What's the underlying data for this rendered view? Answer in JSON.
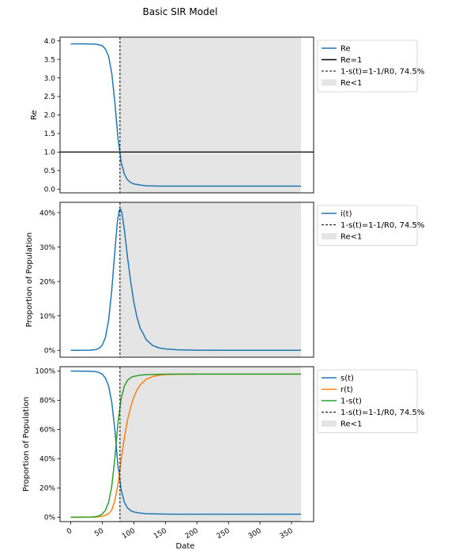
{
  "title": "Basic SIR Model",
  "colors": {
    "blue": "#1f77b4",
    "orange": "#ff7f0e",
    "green": "#2ca02c",
    "shade": "#e5e5e5"
  },
  "chart_data": [
    {
      "type": "line",
      "ylabel": "Re",
      "ylim": [
        -0.1,
        4.1
      ],
      "xlim": [
        -17,
        385
      ],
      "yticks": [
        0.0,
        0.5,
        1.0,
        1.5,
        2.0,
        2.5,
        3.0,
        3.5,
        4.0
      ],
      "ytick_labels": [
        "0.0",
        "0.5",
        "1.0",
        "1.5",
        "2.0",
        "2.5",
        "3.0",
        "3.5",
        "4.0"
      ],
      "legend": [
        "Re",
        "Re=1",
        "1-s(t)=1-1/R0, 74.5%",
        "Re<1"
      ],
      "legend_placement": "outside-right",
      "vline_x": 78,
      "shade_x": [
        78,
        365
      ],
      "hline_y": 1.0,
      "series": [
        {
          "name": "Re",
          "color": "#1f77b4",
          "x": [
            0,
            20,
            40,
            50,
            55,
            60,
            65,
            70,
            75,
            78,
            80,
            85,
            90,
            95,
            100,
            110,
            120,
            140,
            160,
            200,
            250,
            300,
            365
          ],
          "values": [
            3.92,
            3.92,
            3.91,
            3.87,
            3.78,
            3.58,
            3.12,
            2.32,
            1.35,
            0.98,
            0.72,
            0.4,
            0.25,
            0.18,
            0.14,
            0.11,
            0.09,
            0.08,
            0.08,
            0.08,
            0.08,
            0.08,
            0.08
          ]
        }
      ]
    },
    {
      "type": "line",
      "ylabel": "Proportion of Population",
      "ylim": [
        -2,
        43
      ],
      "xlim": [
        -17,
        385
      ],
      "yticks": [
        0,
        10,
        20,
        30,
        40
      ],
      "ytick_labels": [
        "0%",
        "10%",
        "20%",
        "30%",
        "40%"
      ],
      "legend": [
        "i(t)",
        "1-s(t)=1-1/R0, 74.5%",
        "Re<1"
      ],
      "legend_placement": "outside-right",
      "vline_x": 78,
      "shade_x": [
        78,
        365
      ],
      "series": [
        {
          "name": "i(t)",
          "color": "#1f77b4",
          "x": [
            0,
            30,
            40,
            45,
            50,
            55,
            60,
            65,
            70,
            74,
            77,
            79,
            81,
            85,
            90,
            95,
            100,
            105,
            110,
            120,
            130,
            140,
            150,
            170,
            200,
            250,
            300,
            365
          ],
          "values": [
            0,
            0.05,
            0.2,
            0.6,
            1.5,
            3.8,
            8.8,
            17.5,
            29.0,
            37.5,
            40.8,
            41.0,
            40.0,
            35.0,
            27.0,
            20.0,
            14.0,
            9.6,
            6.5,
            3.0,
            1.4,
            0.7,
            0.4,
            0.15,
            0.05,
            0,
            0,
            0
          ]
        }
      ]
    },
    {
      "type": "line",
      "ylabel": "Proportion of Population",
      "xlabel": "Date",
      "ylim": [
        -3,
        103
      ],
      "xlim": [
        -17,
        385
      ],
      "xticks": [
        0,
        50,
        100,
        150,
        200,
        250,
        300,
        350
      ],
      "xtick_labels": [
        "0",
        "50",
        "100",
        "150",
        "200",
        "250",
        "300",
        "350"
      ],
      "yticks": [
        0,
        20,
        40,
        60,
        80,
        100
      ],
      "ytick_labels": [
        "0%",
        "20%",
        "40%",
        "60%",
        "80%",
        "100%"
      ],
      "legend": [
        "s(t)",
        "r(t)",
        "1-s(t)",
        "1-s(t)=1-1/R0, 74.5%",
        "Re<1"
      ],
      "legend_placement": "outside-right",
      "vline_x": 78,
      "shade_x": [
        78,
        365
      ],
      "series": [
        {
          "name": "s(t)",
          "color": "#1f77b4",
          "x": [
            0,
            30,
            40,
            45,
            50,
            55,
            60,
            65,
            70,
            75,
            78,
            80,
            85,
            90,
            95,
            100,
            110,
            120,
            140,
            160,
            200,
            250,
            300,
            365
          ],
          "values": [
            100,
            99.9,
            99.6,
            99.0,
            97.8,
            95.2,
            89.8,
            78.7,
            59.3,
            34.5,
            25.0,
            18.5,
            10.2,
            6.3,
            4.5,
            3.6,
            2.8,
            2.4,
            2.2,
            2.1,
            2.1,
            2.1,
            2.1,
            2.1
          ]
        },
        {
          "name": "r(t)",
          "color": "#ff7f0e",
          "x": [
            0,
            40,
            50,
            55,
            60,
            65,
            70,
            75,
            78,
            80,
            85,
            90,
            95,
            100,
            105,
            110,
            120,
            130,
            140,
            150,
            170,
            200,
            250,
            300,
            365
          ],
          "values": [
            0,
            0.1,
            0.8,
            1.3,
            2.3,
            5.0,
            11.5,
            23.0,
            33.0,
            40.0,
            54.5,
            66.5,
            75.5,
            82.3,
            87.0,
            90.5,
            94.5,
            96.3,
            97.2,
            97.6,
            97.8,
            97.9,
            97.9,
            97.9,
            97.9
          ]
        },
        {
          "name": "1-s(t)",
          "color": "#2ca02c",
          "x": [
            0,
            30,
            40,
            45,
            50,
            55,
            60,
            65,
            70,
            75,
            78,
            80,
            85,
            90,
            95,
            100,
            110,
            120,
            140,
            160,
            200,
            250,
            300,
            365
          ],
          "values": [
            0,
            0.1,
            0.4,
            1.0,
            2.2,
            4.8,
            10.2,
            21.3,
            40.7,
            65.5,
            75.0,
            81.5,
            89.8,
            93.7,
            95.5,
            96.4,
            97.2,
            97.6,
            97.8,
            97.9,
            97.9,
            97.9,
            97.9,
            97.9
          ]
        }
      ]
    }
  ]
}
